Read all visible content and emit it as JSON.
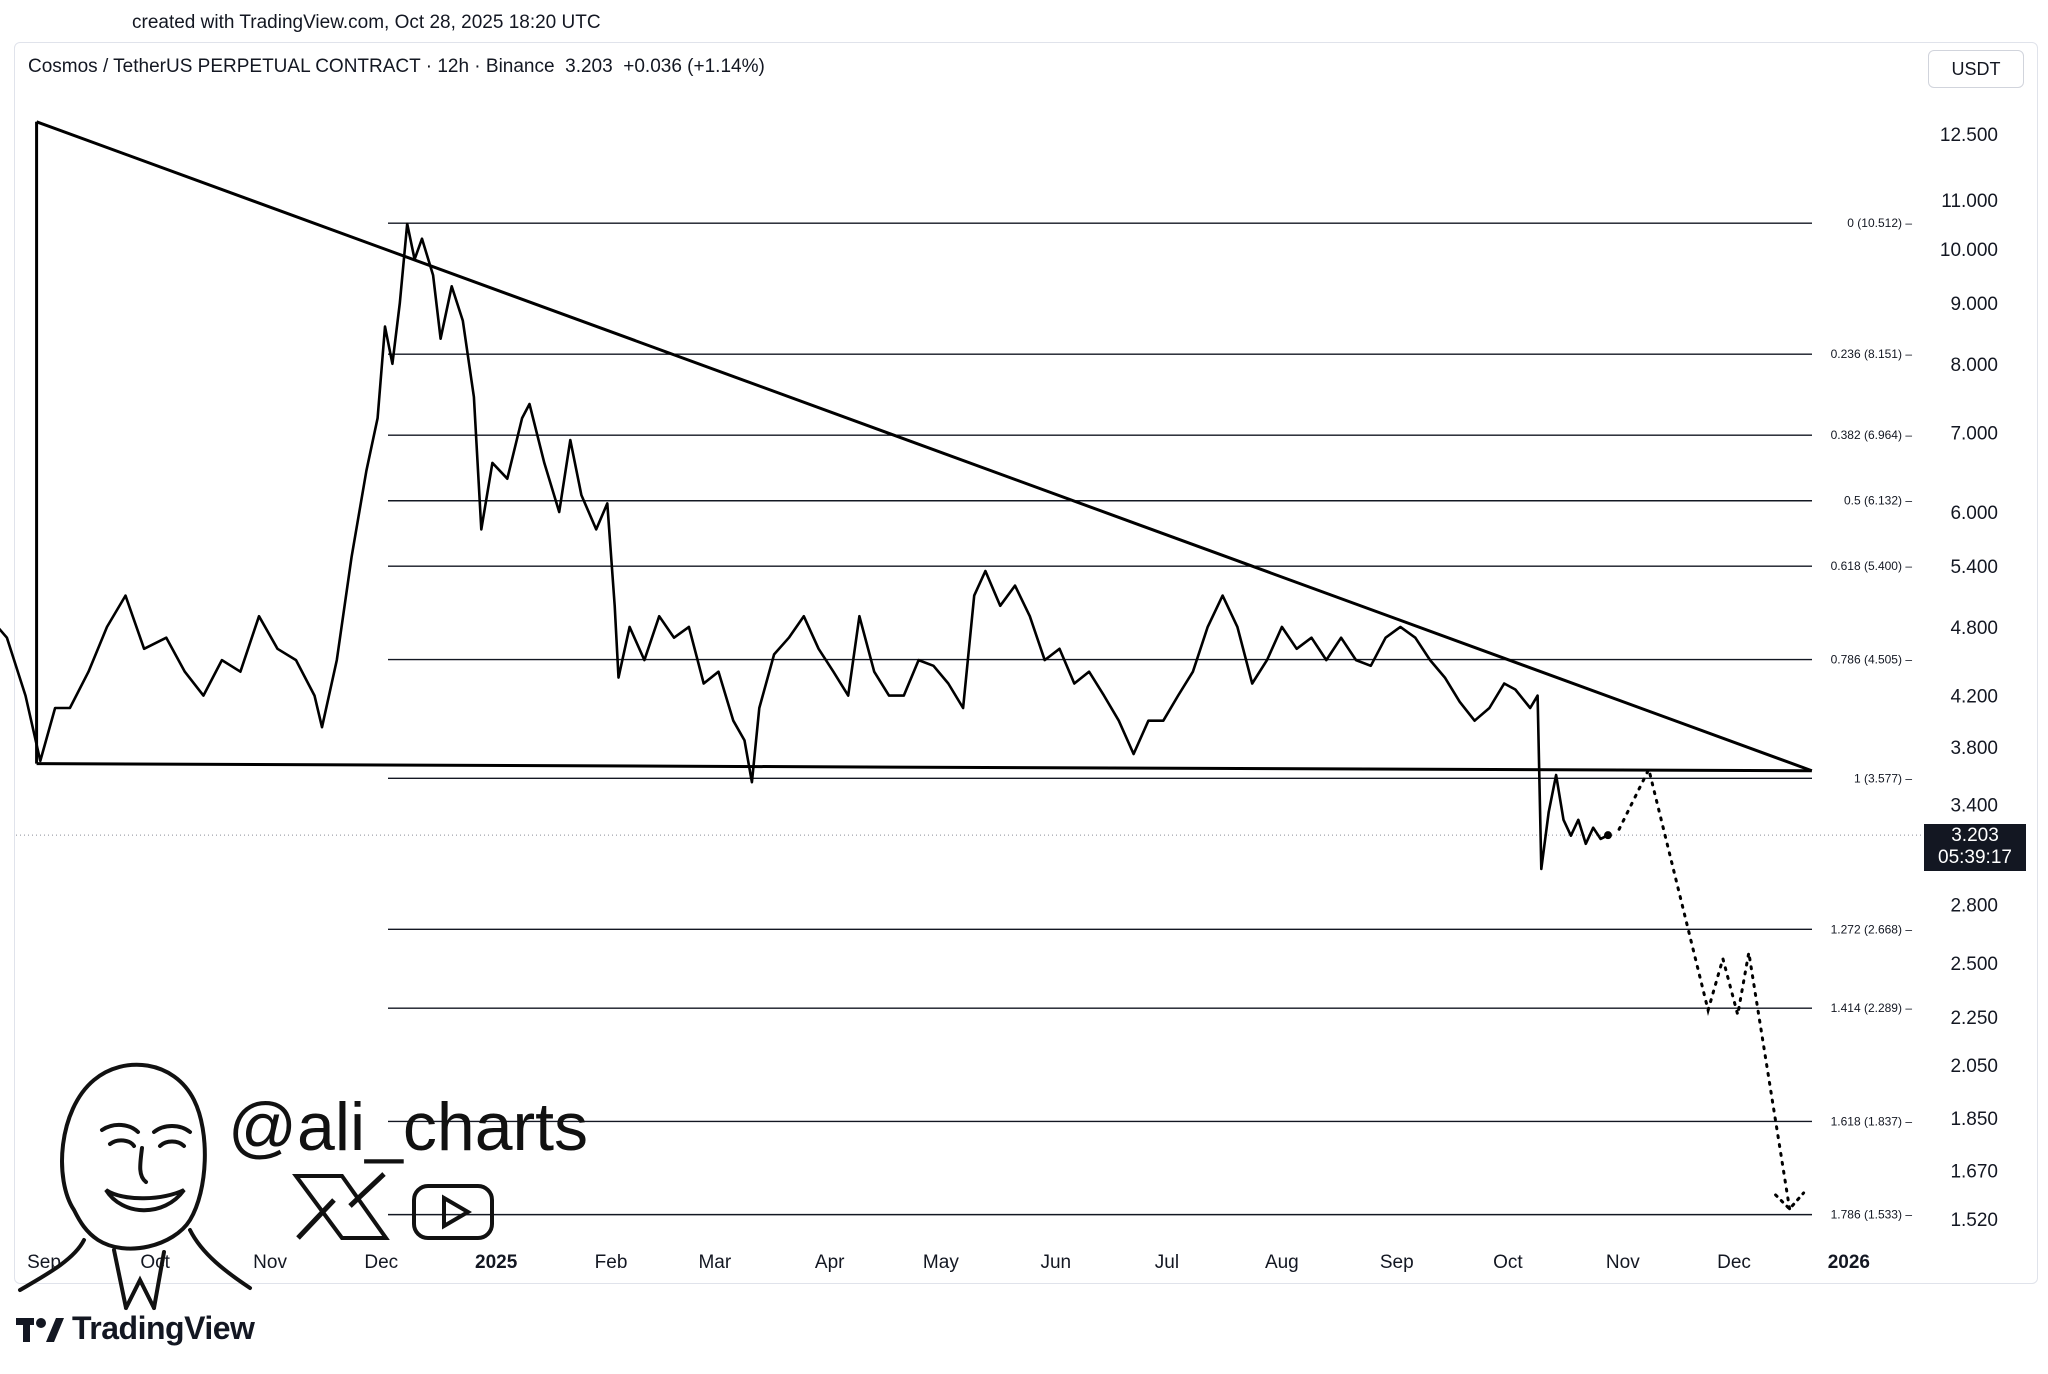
{
  "created_text": "created with TradingView.com, Oct 28, 2025 18:20 UTC",
  "header": {
    "symbol": "Cosmos / TetherUS PERPETUAL CONTRACT",
    "interval": "12h",
    "exchange": "Binance",
    "price": "3.203",
    "change": "+0.036 (+1.14%)"
  },
  "currency_button": "USDT",
  "current_price_tag": {
    "price": "3.203",
    "countdown": "05:39:17"
  },
  "watermark": {
    "handle": "@ali_charts",
    "icons": [
      "x-logo-icon",
      "youtube-play-icon"
    ]
  },
  "brand": {
    "name": "TradingView",
    "icon": "tradingview-logo-icon"
  },
  "colors": {
    "line": "#000000",
    "fib": "#131722",
    "tag_bg": "#131722"
  },
  "chart_data": {
    "type": "line",
    "title": "",
    "xlabel": "",
    "ylabel": "",
    "log_scale": true,
    "grid": false,
    "x_ticks": [
      {
        "label": "Sep",
        "date": "2024-09-01"
      },
      {
        "label": "Oct",
        "date": "2024-10-01"
      },
      {
        "label": "Nov",
        "date": "2024-11-01"
      },
      {
        "label": "Dec",
        "date": "2024-12-01"
      },
      {
        "label": "2025",
        "date": "2025-01-01",
        "bold": true
      },
      {
        "label": "Feb",
        "date": "2025-02-01"
      },
      {
        "label": "Mar",
        "date": "2025-03-01"
      },
      {
        "label": "Apr",
        "date": "2025-04-01"
      },
      {
        "label": "May",
        "date": "2025-05-01"
      },
      {
        "label": "Jun",
        "date": "2025-06-01"
      },
      {
        "label": "Jul",
        "date": "2025-07-01"
      },
      {
        "label": "Aug",
        "date": "2025-08-01"
      },
      {
        "label": "Sep",
        "date": "2025-09-01"
      },
      {
        "label": "Oct",
        "date": "2025-10-01"
      },
      {
        "label": "Nov",
        "date": "2025-11-01"
      },
      {
        "label": "Dec",
        "date": "2025-12-01"
      },
      {
        "label": "2026",
        "date": "2026-01-01",
        "bold": true
      }
    ],
    "y_ticks": [
      "12.500",
      "11.000",
      "10.000",
      "9.000",
      "8.000",
      "7.000",
      "6.000",
      "5.400",
      "4.800",
      "4.200",
      "3.800",
      "3.400",
      "2.800",
      "2.500",
      "2.250",
      "2.050",
      "1.850",
      "1.670",
      "1.520"
    ],
    "current_price": 3.203,
    "fib_levels": [
      {
        "label": "0 (10.512)",
        "value": 10.512
      },
      {
        "label": "0.236 (8.151)",
        "value": 8.151
      },
      {
        "label": "0.382 (6.964)",
        "value": 6.964
      },
      {
        "label": "0.5 (6.132)",
        "value": 6.132
      },
      {
        "label": "0.618 (5.400)",
        "value": 5.4
      },
      {
        "label": "0.786 (4.505)",
        "value": 4.505
      },
      {
        "label": "1 (3.577)",
        "value": 3.577
      },
      {
        "label": "1.272 (2.668)",
        "value": 2.668
      },
      {
        "label": "1.414 (2.289)",
        "value": 2.289
      },
      {
        "label": "1.618 (1.837)",
        "value": 1.837
      },
      {
        "label": "1.786 (1.533)",
        "value": 1.533
      }
    ],
    "series": [
      {
        "values": [
          [
            "2024-08-17",
            4.9
          ],
          [
            "2024-08-22",
            4.7
          ],
          [
            "2024-08-27",
            4.2
          ],
          [
            "2024-08-31",
            3.7
          ],
          [
            "2024-09-04",
            4.1
          ],
          [
            "2024-09-08",
            4.1
          ],
          [
            "2024-09-13",
            4.4
          ],
          [
            "2024-09-18",
            4.8
          ],
          [
            "2024-09-23",
            5.1
          ],
          [
            "2024-09-28",
            4.6
          ],
          [
            "2024-10-04",
            4.7
          ],
          [
            "2024-10-09",
            4.4
          ],
          [
            "2024-10-14",
            4.2
          ],
          [
            "2024-10-19",
            4.5
          ],
          [
            "2024-10-24",
            4.4
          ],
          [
            "2024-10-29",
            4.9
          ],
          [
            "2024-11-03",
            4.6
          ],
          [
            "2024-11-08",
            4.5
          ],
          [
            "2024-11-13",
            4.2
          ],
          [
            "2024-11-15",
            3.95
          ],
          [
            "2024-11-19",
            4.5
          ],
          [
            "2024-11-23",
            5.5
          ],
          [
            "2024-11-27",
            6.5
          ],
          [
            "2024-11-30",
            7.2
          ],
          [
            "2024-12-02",
            8.6
          ],
          [
            "2024-12-04",
            8.0
          ],
          [
            "2024-12-06",
            9.0
          ],
          [
            "2024-12-08",
            10.5
          ],
          [
            "2024-12-10",
            9.8
          ],
          [
            "2024-12-12",
            10.2
          ],
          [
            "2024-12-15",
            9.5
          ],
          [
            "2024-12-17",
            8.4
          ],
          [
            "2024-12-20",
            9.3
          ],
          [
            "2024-12-23",
            8.7
          ],
          [
            "2024-12-26",
            7.5
          ],
          [
            "2024-12-28",
            5.8
          ],
          [
            "2024-12-31",
            6.6
          ],
          [
            "2025-01-04",
            6.4
          ],
          [
            "2025-01-08",
            7.2
          ],
          [
            "2025-01-10",
            7.4
          ],
          [
            "2025-01-14",
            6.6
          ],
          [
            "2025-01-18",
            6.0
          ],
          [
            "2025-01-21",
            6.9
          ],
          [
            "2025-01-24",
            6.2
          ],
          [
            "2025-01-28",
            5.8
          ],
          [
            "2025-01-31",
            6.1
          ],
          [
            "2025-02-02",
            5.0
          ],
          [
            "2025-02-03",
            4.35
          ],
          [
            "2025-02-06",
            4.8
          ],
          [
            "2025-02-10",
            4.5
          ],
          [
            "2025-02-14",
            4.9
          ],
          [
            "2025-02-18",
            4.7
          ],
          [
            "2025-02-22",
            4.8
          ],
          [
            "2025-02-26",
            4.3
          ],
          [
            "2025-03-02",
            4.4
          ],
          [
            "2025-03-06",
            4.0
          ],
          [
            "2025-03-09",
            3.85
          ],
          [
            "2025-03-11",
            3.55
          ],
          [
            "2025-03-13",
            4.1
          ],
          [
            "2025-03-17",
            4.55
          ],
          [
            "2025-03-21",
            4.7
          ],
          [
            "2025-03-25",
            4.9
          ],
          [
            "2025-03-29",
            4.6
          ],
          [
            "2025-04-02",
            4.4
          ],
          [
            "2025-04-06",
            4.2
          ],
          [
            "2025-04-09",
            4.9
          ],
          [
            "2025-04-13",
            4.4
          ],
          [
            "2025-04-17",
            4.2
          ],
          [
            "2025-04-21",
            4.2
          ],
          [
            "2025-04-25",
            4.5
          ],
          [
            "2025-04-29",
            4.45
          ],
          [
            "2025-05-03",
            4.3
          ],
          [
            "2025-05-07",
            4.1
          ],
          [
            "2025-05-10",
            5.1
          ],
          [
            "2025-05-13",
            5.35
          ],
          [
            "2025-05-17",
            5.0
          ],
          [
            "2025-05-21",
            5.2
          ],
          [
            "2025-05-25",
            4.9
          ],
          [
            "2025-05-29",
            4.5
          ],
          [
            "2025-06-02",
            4.6
          ],
          [
            "2025-06-06",
            4.3
          ],
          [
            "2025-06-10",
            4.4
          ],
          [
            "2025-06-14",
            4.2
          ],
          [
            "2025-06-18",
            4.0
          ],
          [
            "2025-06-22",
            3.75
          ],
          [
            "2025-06-26",
            4.0
          ],
          [
            "2025-06-30",
            4.0
          ],
          [
            "2025-07-04",
            4.2
          ],
          [
            "2025-07-08",
            4.4
          ],
          [
            "2025-07-12",
            4.8
          ],
          [
            "2025-07-16",
            5.1
          ],
          [
            "2025-07-20",
            4.8
          ],
          [
            "2025-07-24",
            4.3
          ],
          [
            "2025-07-28",
            4.5
          ],
          [
            "2025-08-01",
            4.8
          ],
          [
            "2025-08-05",
            4.6
          ],
          [
            "2025-08-09",
            4.7
          ],
          [
            "2025-08-13",
            4.5
          ],
          [
            "2025-08-17",
            4.7
          ],
          [
            "2025-08-21",
            4.5
          ],
          [
            "2025-08-25",
            4.45
          ],
          [
            "2025-08-29",
            4.7
          ],
          [
            "2025-09-02",
            4.8
          ],
          [
            "2025-09-06",
            4.7
          ],
          [
            "2025-09-10",
            4.5
          ],
          [
            "2025-09-14",
            4.35
          ],
          [
            "2025-09-18",
            4.15
          ],
          [
            "2025-09-22",
            4.0
          ],
          [
            "2025-09-26",
            4.1
          ],
          [
            "2025-09-30",
            4.3
          ],
          [
            "2025-10-03",
            4.25
          ],
          [
            "2025-10-07",
            4.1
          ],
          [
            "2025-10-09",
            4.2
          ],
          [
            "2025-10-10",
            3.0
          ],
          [
            "2025-10-12",
            3.35
          ],
          [
            "2025-10-14",
            3.6
          ],
          [
            "2025-10-16",
            3.3
          ],
          [
            "2025-10-18",
            3.2
          ],
          [
            "2025-10-20",
            3.3
          ],
          [
            "2025-10-22",
            3.15
          ],
          [
            "2025-10-24",
            3.25
          ],
          [
            "2025-10-26",
            3.18
          ],
          [
            "2025-10-28",
            3.203
          ]
        ]
      }
    ],
    "annotations": [
      {
        "kind": "triangle",
        "points": [
          [
            "2024-08-30",
            12.8
          ],
          [
            "2024-08-30",
            3.68
          ],
          [
            "2025-12-22",
            3.63
          ],
          [
            "2024-12-08",
            10.6
          ]
        ]
      },
      {
        "kind": "projection",
        "style": "dotted-arrow",
        "points": [
          [
            "2025-10-31",
            3.24
          ],
          [
            "2025-11-08",
            3.64
          ],
          [
            "2025-11-24",
            2.28
          ],
          [
            "2025-11-28",
            2.52
          ],
          [
            "2025-12-02",
            2.26
          ],
          [
            "2025-12-05",
            2.55
          ],
          [
            "2025-12-16",
            1.55
          ]
        ]
      }
    ]
  }
}
